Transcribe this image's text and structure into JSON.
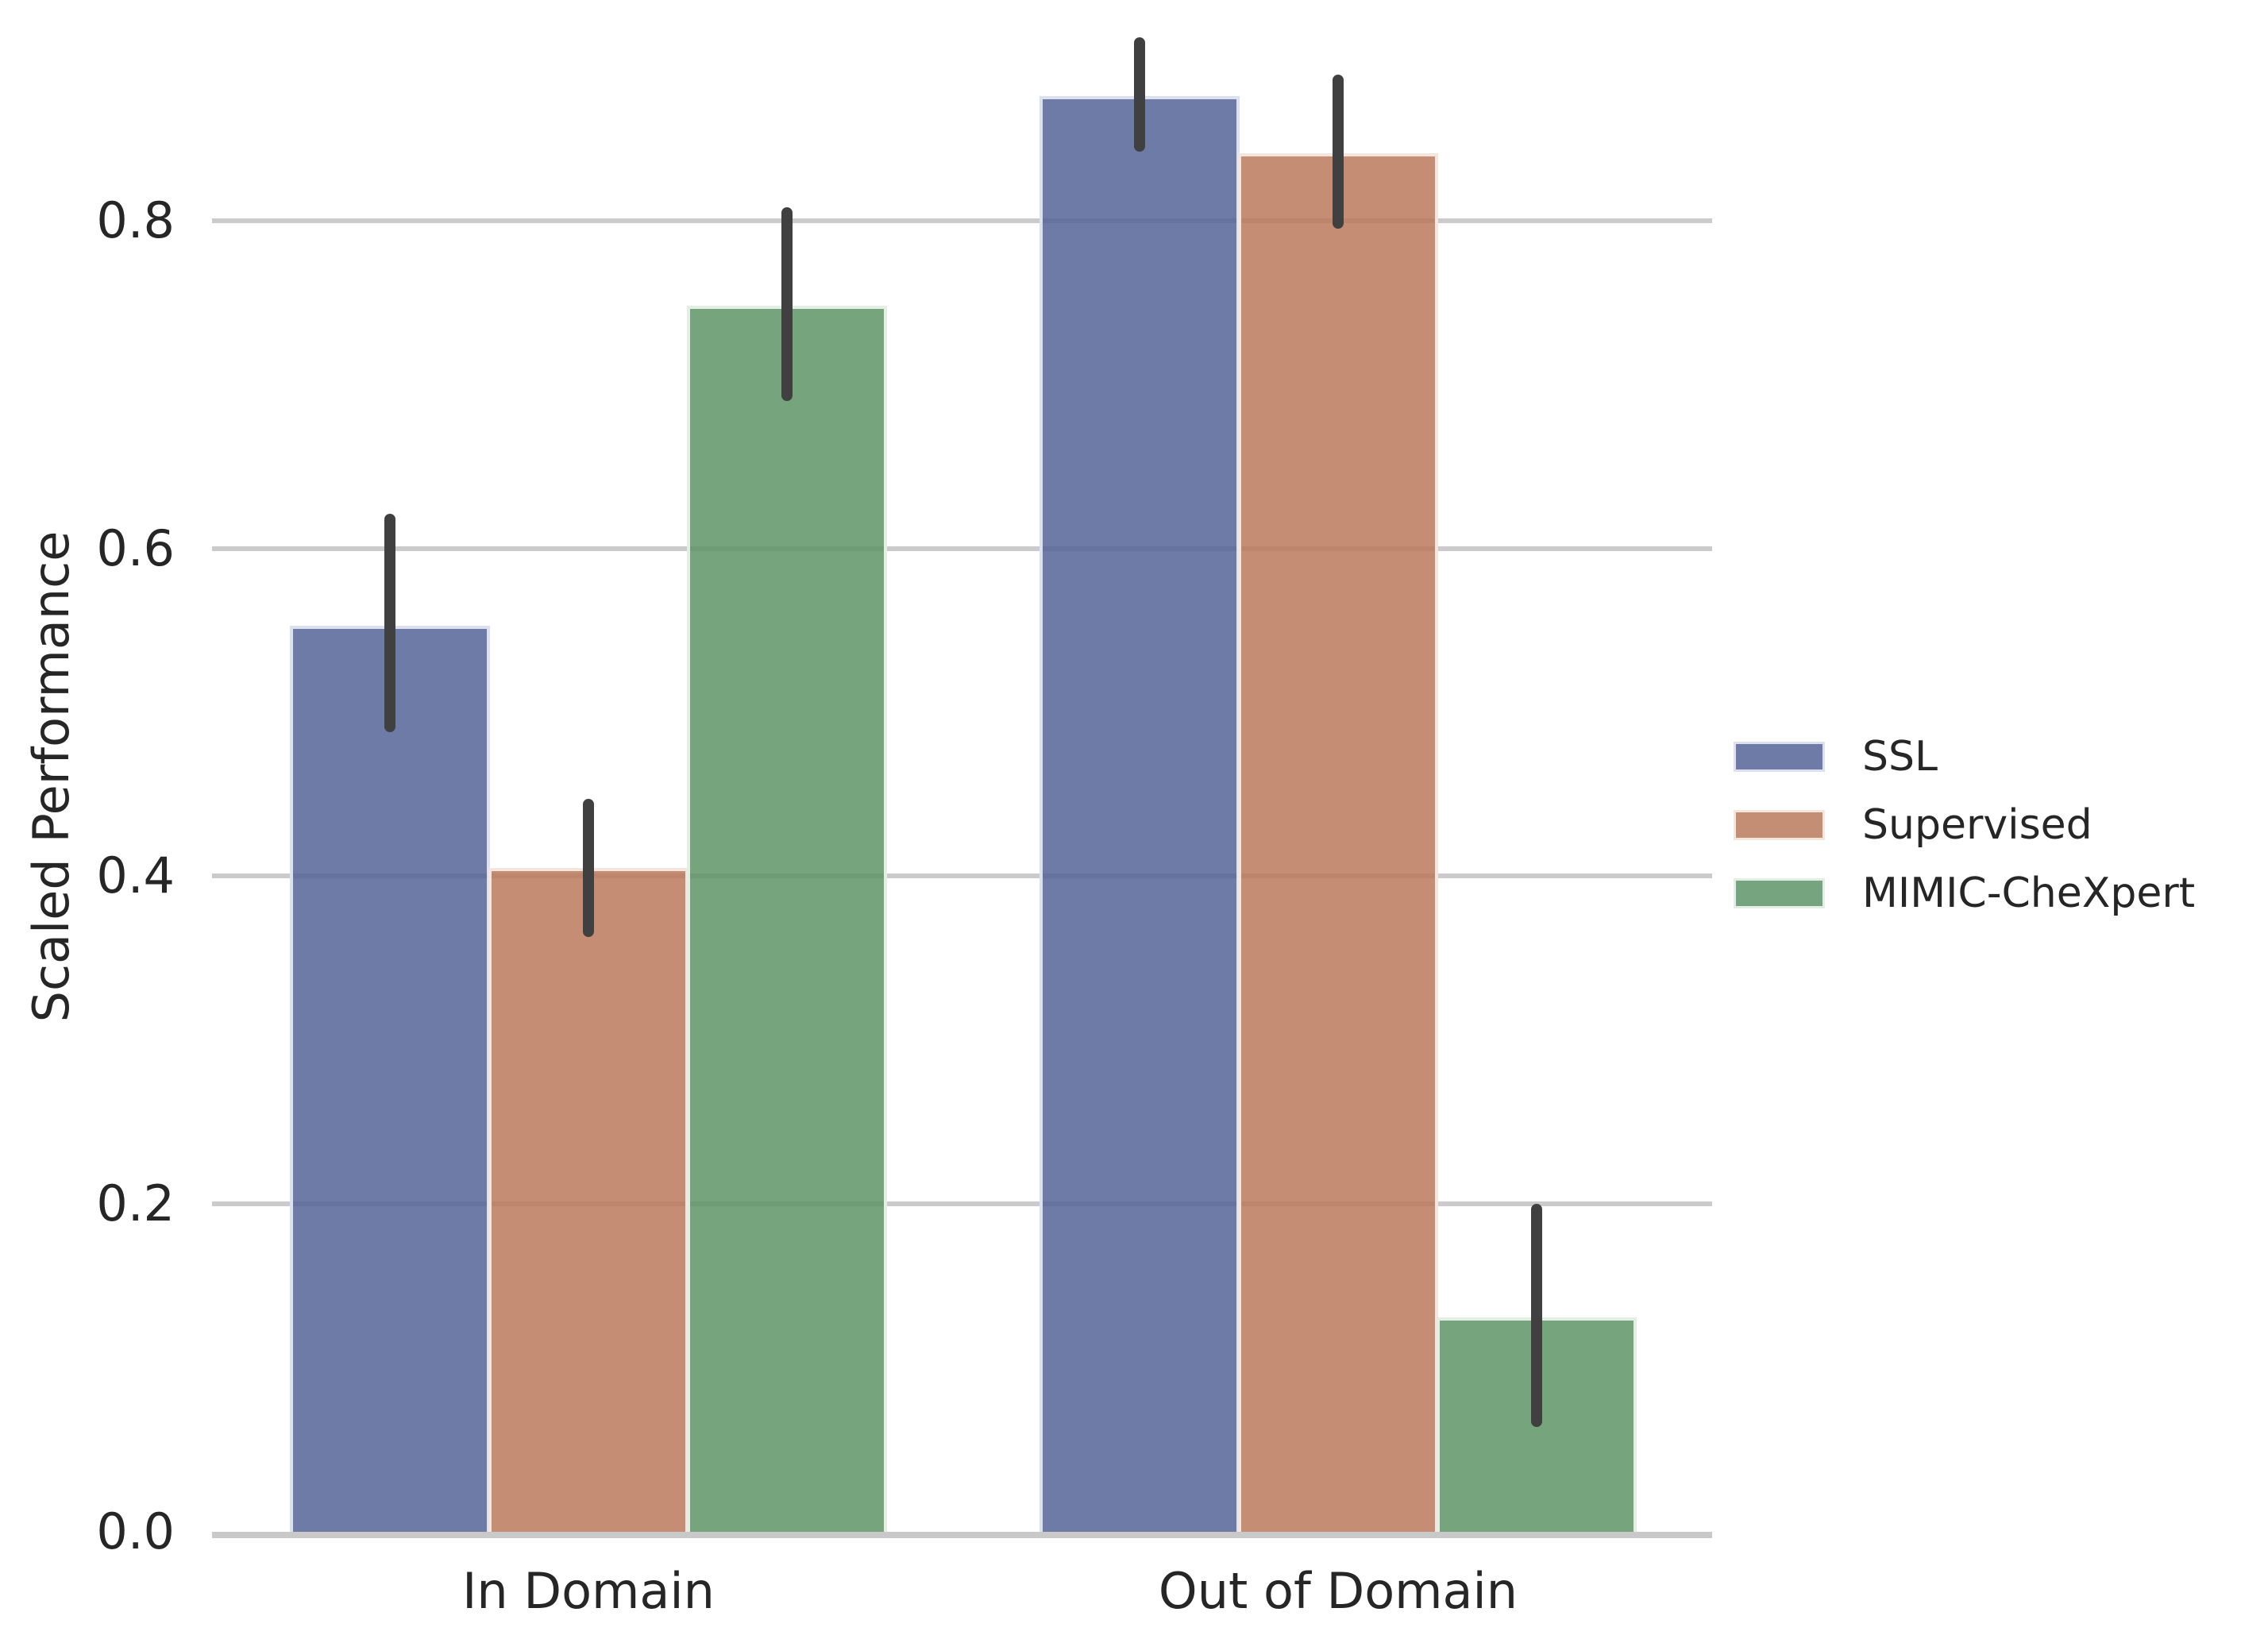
{
  "chart_data": {
    "type": "bar",
    "title": "",
    "xlabel": "",
    "ylabel": "Scaled Performance",
    "categories": [
      "In Domain",
      "Out of Domain"
    ],
    "series": [
      {
        "name": "SSL",
        "color": "#6d7ba6",
        "fill": "rgba(83,100,150,0.85)",
        "edge_color": "#dce0ef",
        "values": [
          0.553,
          0.876
        ],
        "ci_low": [
          0.488,
          0.842
        ],
        "ci_high": [
          0.621,
          0.912
        ]
      },
      {
        "name": "Supervised",
        "color": "#c48e75",
        "fill": "rgba(187,121,91,0.85)",
        "edge_color": "#f5e6dd",
        "values": [
          0.405,
          0.841
        ],
        "ci_low": [
          0.363,
          0.795
        ],
        "ci_high": [
          0.447,
          0.889
        ]
      },
      {
        "name": "MIMIC-CheXpert",
        "color": "#76a47e",
        "fill": "rgba(94,148,102,0.85)",
        "edge_color": "#e3eee4",
        "values": [
          0.748,
          0.131
        ],
        "ci_low": [
          0.69,
          0.064
        ],
        "ci_high": [
          0.808,
          0.2
        ]
      }
    ],
    "yticks": [
      0.0,
      0.2,
      0.4,
      0.6,
      0.8
    ],
    "ytick_labels": [
      "0.0",
      "0.2",
      "0.4",
      "0.6",
      "0.8"
    ],
    "ylim": [
      0.0,
      0.93
    ],
    "grid": "horizontal",
    "legend_position": "center-right",
    "error_bars": "vertical-ci",
    "colors": {
      "grid_line": "#cbcbcb",
      "baseline": "#c9c9c9",
      "error_bar": "#404040",
      "text": "#262626",
      "background": "#ffffff"
    }
  }
}
